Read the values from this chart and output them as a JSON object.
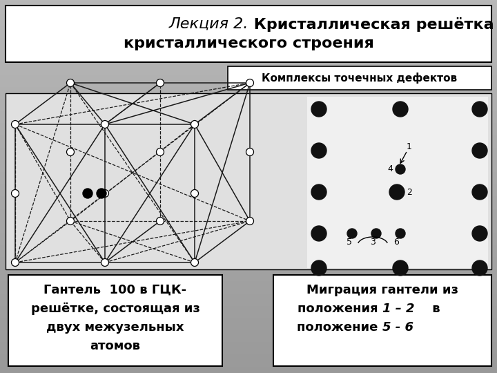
{
  "title_italic": "Лекция 2.",
  "title_bold": " Кристаллическая решётка металлов. Дефекты",
  "title_bold2": "кристаллического строения",
  "subtitle_box": "Комплексы точечных дефектов",
  "bg_color_top": "#a0a0a0",
  "bg_color_bot": "#787878",
  "title_bg": "#ffffff",
  "box_bg": "#ffffff",
  "image_bg": "#e8e8e8",
  "box1_lines": [
    "Гантель  100 в ГЦК-",
    "решётке, состоящая из",
    "двух межузельных",
    "атомов"
  ],
  "box2_line1": "Миграция гантели из",
  "box2_line2a": "положения ",
  "box2_line2b": "1 – 2",
  "box2_line2c": " в",
  "box2_line3a": "положение ",
  "box2_line3b": "5 - 6"
}
